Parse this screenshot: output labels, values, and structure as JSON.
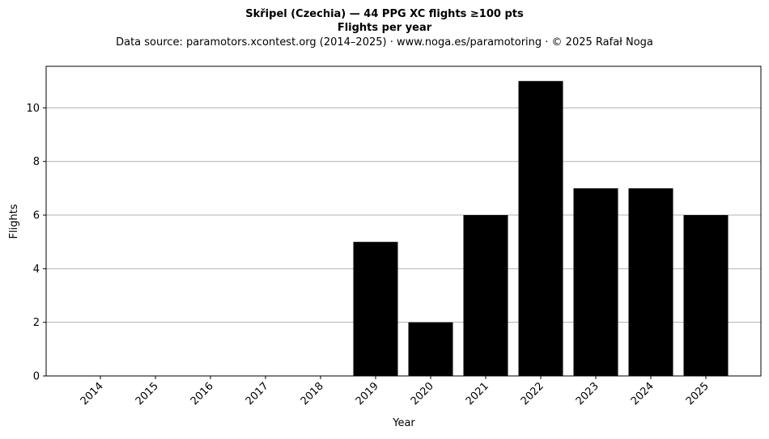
{
  "chart_data": {
    "type": "bar",
    "title": "Skřipel (Czechia)  —  44 PPG XC flights ≥100 pts",
    "subtitle": "Flights per year",
    "source_note": "Data source: paramotors.xcontest.org (2014–2025)  ·  www.noga.es/paramotoring  ·  © 2025 Rafał Noga",
    "xlabel": "Year",
    "ylabel": "Flights",
    "categories": [
      "2014",
      "2015",
      "2016",
      "2017",
      "2018",
      "2019",
      "2020",
      "2021",
      "2022",
      "2023",
      "2024",
      "2025"
    ],
    "values": [
      0,
      0,
      0,
      0,
      0,
      5,
      2,
      6,
      11,
      7,
      7,
      6
    ],
    "ylim": [
      0,
      11.55
    ],
    "yticks": [
      0,
      2,
      4,
      6,
      8,
      10
    ],
    "grid": "y",
    "bar_color": "#000000",
    "grid_color": "#b0b0b0"
  }
}
